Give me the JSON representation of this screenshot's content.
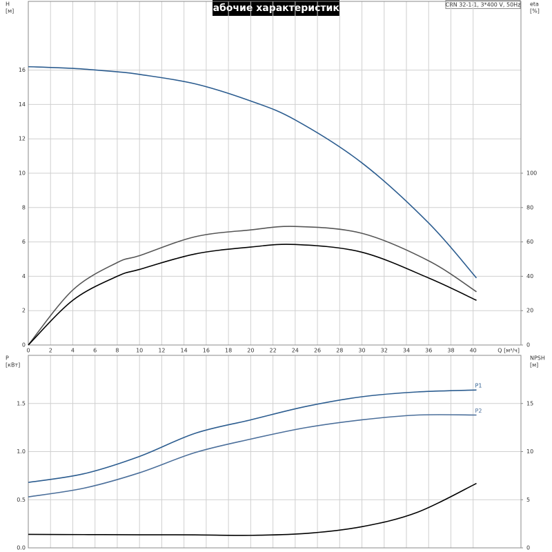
{
  "title": "Рабочие характеристики",
  "model": "CRN 32-1-1, 3*400 V, 50Hz",
  "chart_data": [
    {
      "type": "line",
      "xlabel": "Q [м³/ч]",
      "ylabel": [
        "H",
        "[м]"
      ],
      "y2label": [
        "eta",
        "[%]"
      ],
      "x": [
        0,
        4,
        8,
        10,
        15,
        20,
        24,
        30,
        36,
        40.3
      ],
      "xlim": [
        0,
        44.3
      ],
      "xticks": [
        0,
        2,
        4,
        6,
        8,
        10,
        12,
        14,
        16,
        18,
        20,
        22,
        24,
        26,
        28,
        30,
        32,
        34,
        36,
        38,
        40
      ],
      "x_tick_labels": true,
      "ylim": [
        0,
        20
      ],
      "yticks": [
        0,
        2,
        4,
        6,
        8,
        10,
        12,
        14,
        16
      ],
      "y2lim": [
        0,
        200
      ],
      "y2ticks": [
        0,
        20,
        40,
        60,
        80,
        100
      ],
      "grid": true,
      "series": [
        {
          "color": "#2b5c8f",
          "values": [
            16.2,
            16.1,
            15.9,
            15.75,
            15.2,
            14.2,
            13.1,
            10.6,
            7.1,
            3.9
          ]
        },
        {
          "color": "#555555",
          "axis": "y2",
          "values": [
            0,
            32,
            48,
            52,
            63,
            67,
            69,
            65,
            49,
            31
          ]
        },
        {
          "color": "#000000",
          "axis": "y2",
          "values": [
            0,
            26,
            40,
            44,
            53,
            57,
            58.5,
            54,
            39,
            26
          ]
        }
      ]
    },
    {
      "type": "line",
      "ylabel": [
        "P",
        "[кВт]"
      ],
      "y2label": [
        "NPSH",
        "[м]"
      ],
      "x": [
        0,
        5,
        10,
        15,
        20,
        25,
        30,
        35,
        40.3
      ],
      "xlim": [
        0,
        44.3
      ],
      "xticks": [
        0,
        2,
        4,
        6,
        8,
        10,
        12,
        14,
        16,
        18,
        20,
        22,
        24,
        26,
        28,
        30,
        32,
        34,
        36,
        38,
        40
      ],
      "x_tick_labels": false,
      "ylim": [
        0,
        2
      ],
      "yticks": [
        {
          "value": 0,
          "label": "0.0"
        },
        0.5,
        {
          "value": 1,
          "label": "1.0"
        },
        1.5
      ],
      "y2lim": [
        0,
        20
      ],
      "y2ticks": [
        0,
        5,
        10,
        15
      ],
      "grid": true,
      "series": [
        {
          "name": "P1",
          "color": "#2b5c8f",
          "values": [
            0.68,
            0.77,
            0.95,
            1.19,
            1.33,
            1.47,
            1.57,
            1.62,
            1.64
          ]
        },
        {
          "name": "P2",
          "color": "#4a6e9a",
          "values": [
            0.53,
            0.62,
            0.78,
            0.99,
            1.13,
            1.25,
            1.33,
            1.38,
            1.38
          ]
        },
        {
          "color": "#000000",
          "axis": "y2",
          "values": [
            1.4,
            1.38,
            1.36,
            1.35,
            1.3,
            1.5,
            2.2,
            3.7,
            6.7
          ]
        }
      ]
    }
  ]
}
